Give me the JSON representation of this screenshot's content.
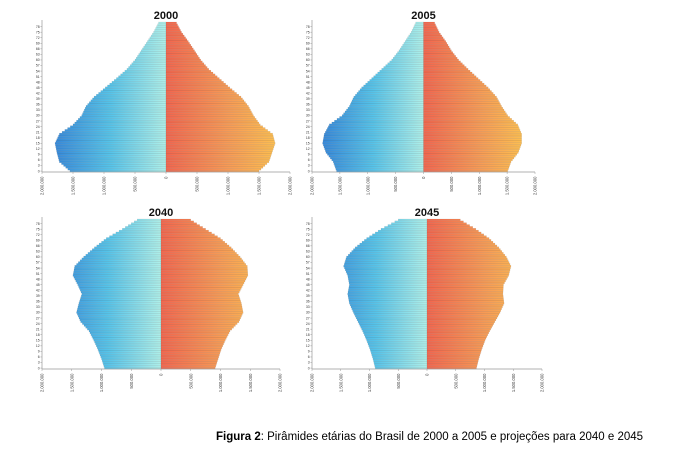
{
  "page": {
    "background": "#ffffff"
  },
  "caption": {
    "label": "Figura 2",
    "text": ": Pirâmides etárias do Brasil de 2000 a 2005 e projeções para 2040 e 2045"
  },
  "colors": {
    "male_center": "#AEEFE9",
    "male_mid": "#55C3E9",
    "male_outer": "#2F7BD6",
    "female_center": "#F2664E",
    "female_mid": "#F79A55",
    "female_outer": "#FFC94F",
    "axis": "#999999",
    "tick_text": "#333333",
    "bar_stripe": "rgba(60,60,60,0.18)"
  },
  "chart_data": [
    {
      "type": "bar",
      "subtype": "population-pyramid",
      "title": "2000",
      "x_axis": {
        "max": 2000000,
        "tick_step": 500000,
        "unit": "persons"
      },
      "y_axis": {
        "age_min": 0,
        "age_max": 80,
        "label_step": 3,
        "label_max": 78
      },
      "pivot_ages": [
        0,
        5,
        10,
        15,
        20,
        25,
        30,
        35,
        40,
        45,
        50,
        55,
        60,
        65,
        70,
        75,
        80
      ],
      "series": [
        {
          "name": "male-left",
          "values": [
            1550000,
            1720000,
            1760000,
            1790000,
            1720000,
            1500000,
            1360000,
            1290000,
            1160000,
            980000,
            800000,
            630000,
            500000,
            400000,
            300000,
            200000,
            120000
          ]
        },
        {
          "name": "female-right",
          "values": [
            1500000,
            1660000,
            1710000,
            1760000,
            1720000,
            1520000,
            1410000,
            1330000,
            1210000,
            1030000,
            860000,
            690000,
            560000,
            460000,
            360000,
            250000,
            170000
          ]
        }
      ]
    },
    {
      "type": "bar",
      "subtype": "population-pyramid",
      "title": "2005",
      "x_axis": {
        "max": 2000000,
        "tick_step": 500000,
        "unit": "persons"
      },
      "y_axis": {
        "age_min": 0,
        "age_max": 80,
        "label_step": 3,
        "label_max": 78
      },
      "pivot_ages": [
        0,
        5,
        10,
        15,
        20,
        25,
        30,
        35,
        40,
        45,
        50,
        55,
        60,
        65,
        70,
        75,
        80
      ],
      "series": [
        {
          "name": "male-left",
          "values": [
            1560000,
            1620000,
            1750000,
            1810000,
            1780000,
            1690000,
            1460000,
            1330000,
            1250000,
            1110000,
            930000,
            750000,
            570000,
            440000,
            330000,
            220000,
            140000
          ]
        },
        {
          "name": "female-right",
          "values": [
            1510000,
            1570000,
            1700000,
            1760000,
            1760000,
            1690000,
            1510000,
            1400000,
            1310000,
            1160000,
            980000,
            800000,
            630000,
            500000,
            400000,
            280000,
            200000
          ]
        }
      ]
    },
    {
      "type": "bar",
      "subtype": "population-pyramid",
      "title": "2040",
      "x_axis": {
        "max": 2000000,
        "tick_step": 500000,
        "unit": "persons"
      },
      "y_axis": {
        "age_min": 0,
        "age_max": 80,
        "label_step": 3,
        "label_max": 78
      },
      "pivot_ages": [
        0,
        5,
        10,
        15,
        20,
        25,
        30,
        35,
        40,
        45,
        50,
        55,
        60,
        65,
        70,
        75,
        80
      ],
      "series": [
        {
          "name": "male-left",
          "values": [
            950000,
            1000000,
            1060000,
            1130000,
            1210000,
            1350000,
            1420000,
            1380000,
            1330000,
            1400000,
            1480000,
            1450000,
            1300000,
            1120000,
            920000,
            650000,
            400000
          ]
        },
        {
          "name": "female-right",
          "values": [
            910000,
            960000,
            1010000,
            1080000,
            1160000,
            1310000,
            1380000,
            1350000,
            1300000,
            1380000,
            1460000,
            1450000,
            1330000,
            1180000,
            1000000,
            750000,
            500000
          ]
        }
      ]
    },
    {
      "type": "bar",
      "subtype": "population-pyramid",
      "title": "2045",
      "x_axis": {
        "max": 2000000,
        "tick_step": 500000,
        "unit": "persons"
      },
      "y_axis": {
        "age_min": 0,
        "age_max": 80,
        "label_step": 3,
        "label_max": 78
      },
      "pivot_ages": [
        0,
        5,
        10,
        15,
        20,
        25,
        30,
        35,
        40,
        45,
        50,
        55,
        60,
        65,
        70,
        75,
        80
      ],
      "series": [
        {
          "name": "male-left",
          "values": [
            900000,
            940000,
            990000,
            1050000,
            1120000,
            1200000,
            1280000,
            1350000,
            1380000,
            1350000,
            1380000,
            1450000,
            1400000,
            1250000,
            1050000,
            800000,
            500000
          ]
        },
        {
          "name": "female-right",
          "values": [
            860000,
            900000,
            950000,
            1010000,
            1090000,
            1180000,
            1270000,
            1340000,
            1320000,
            1330000,
            1420000,
            1460000,
            1380000,
            1250000,
            1080000,
            850000,
            580000
          ]
        }
      ]
    }
  ]
}
